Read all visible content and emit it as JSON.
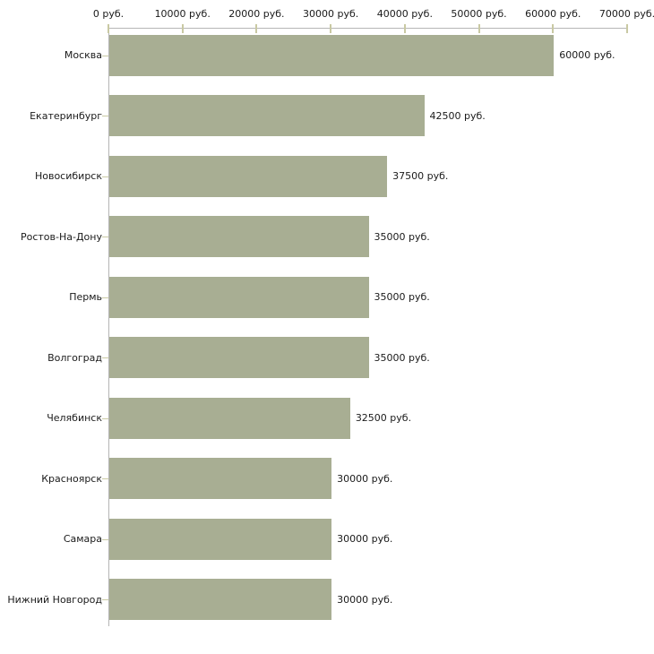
{
  "chart_data": {
    "type": "bar",
    "orientation": "horizontal",
    "title": "",
    "xlabel": "",
    "ylabel": "",
    "unit": "руб.",
    "categories": [
      "Москва",
      "Екатеринбург",
      "Новосибирск",
      "Ростов-На-Дону",
      "Пермь",
      "Волгоград",
      "Челябинск",
      "Красноярск",
      "Самара",
      "Нижний Новгород"
    ],
    "values": [
      60000,
      42500,
      37500,
      35000,
      35000,
      35000,
      32500,
      30000,
      30000,
      30000
    ],
    "value_labels": [
      "60000 руб.",
      "42500 руб.",
      "37500 руб.",
      "35000 руб.",
      "35000 руб.",
      "35000 руб.",
      "32500 руб.",
      "30000 руб.",
      "30000 руб.",
      "30000 руб."
    ],
    "x_ticks": [
      {
        "value": 0,
        "label": "0 руб."
      },
      {
        "value": 10000,
        "label": "10000 руб."
      },
      {
        "value": 20000,
        "label": "20000 руб."
      },
      {
        "value": 30000,
        "label": "30000 руб."
      },
      {
        "value": 40000,
        "label": "40000 руб."
      },
      {
        "value": 50000,
        "label": "50000 руб."
      },
      {
        "value": 60000,
        "label": "60000 руб."
      },
      {
        "value": 70000,
        "label": "70000 руб."
      }
    ],
    "xlim": [
      0,
      70000
    ],
    "grid": false,
    "legend": "none",
    "axis_position": "top",
    "colors": {
      "bar": "#a8ae93",
      "axis_line": "#b5b5b5",
      "tick": "#c9c9a3",
      "text": "#1a1a1a",
      "background": "#ffffff"
    }
  }
}
